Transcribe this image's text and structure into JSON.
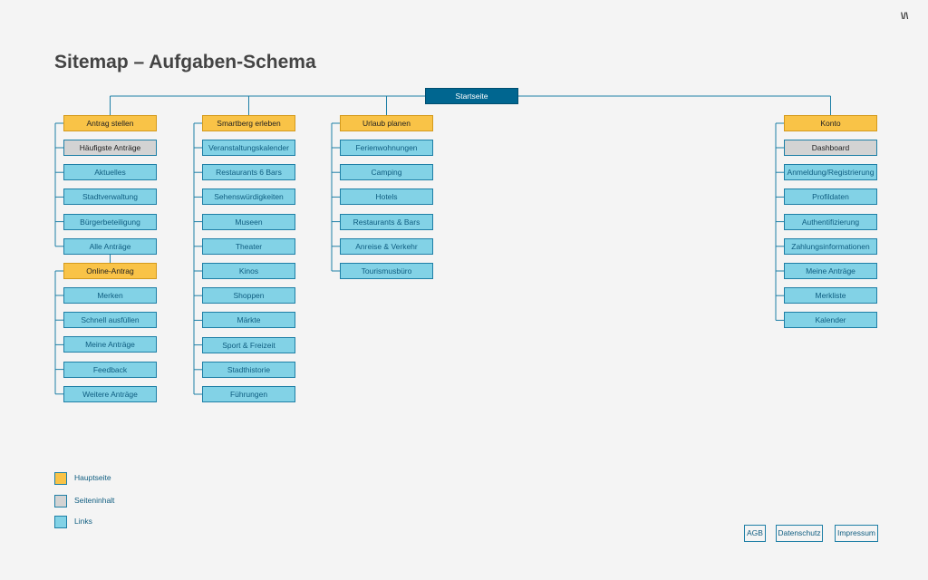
{
  "brand": {
    "logo_text": "\\/\\"
  },
  "title": "Sitemap – Aufgaben-Schema",
  "root": {
    "label": "Startseite"
  },
  "columns": [
    {
      "label": "Antrag stellen",
      "children": [
        {
          "label": "Häufigste Anträge",
          "type": "content"
        },
        {
          "label": "Aktuelles",
          "type": "link"
        },
        {
          "label": "Stadtverwaltung",
          "type": "link"
        },
        {
          "label": "Bürgerbeteiligung",
          "type": "link"
        },
        {
          "label": "Alle Anträge",
          "type": "link"
        }
      ],
      "sub": {
        "label": "Online-Antrag",
        "children": [
          {
            "label": "Merken",
            "type": "link"
          },
          {
            "label": "Schnell ausfüllen",
            "type": "link"
          },
          {
            "label": "Meine Anträge",
            "type": "link"
          },
          {
            "label": "Feedback",
            "type": "link"
          },
          {
            "label": "Weitere Anträge",
            "type": "link"
          }
        ]
      }
    },
    {
      "label": "Smartberg erleben",
      "children": [
        {
          "label": "Veranstaltungskalender",
          "type": "link"
        },
        {
          "label": "Restaurants 6 Bars",
          "type": "link"
        },
        {
          "label": "Sehenswürdigkeiten",
          "type": "link"
        },
        {
          "label": "Museen",
          "type": "link"
        },
        {
          "label": "Theater",
          "type": "link"
        },
        {
          "label": "Kinos",
          "type": "link"
        },
        {
          "label": "Shoppen",
          "type": "link"
        },
        {
          "label": "Märkte",
          "type": "link"
        },
        {
          "label": "Sport & Freizeit",
          "type": "link"
        },
        {
          "label": "Stadthistorie",
          "type": "link"
        },
        {
          "label": "Führungen",
          "type": "link"
        }
      ]
    },
    {
      "label": "Urlaub planen",
      "children": [
        {
          "label": "Ferienwohnungen",
          "type": "link"
        },
        {
          "label": "Camping",
          "type": "link"
        },
        {
          "label": "Hotels",
          "type": "link"
        },
        {
          "label": "Restaurants & Bars",
          "type": "link"
        },
        {
          "label": "Anreise & Verkehr",
          "type": "link"
        },
        {
          "label": "Tourismusbüro",
          "type": "link"
        }
      ]
    },
    {
      "label": "Konto",
      "children": [
        {
          "label": "Dashboard",
          "type": "content"
        },
        {
          "label": "Anmeldung/Registrierung",
          "type": "link"
        },
        {
          "label": "Profildaten",
          "type": "link"
        },
        {
          "label": "Authentifizierung",
          "type": "link"
        },
        {
          "label": "Zahlungsinformationen",
          "type": "link"
        },
        {
          "label": "Meine Anträge",
          "type": "link"
        },
        {
          "label": "Merkliste",
          "type": "link"
        },
        {
          "label": "Kalender",
          "type": "link"
        }
      ]
    }
  ],
  "legend": [
    {
      "label": "Hauptseite",
      "color": "#f9c347"
    },
    {
      "label": "Seiteninhalt",
      "color": "#d3d3d3"
    },
    {
      "label": "Links",
      "color": "#82d2e6"
    }
  ],
  "footer": [
    {
      "label": "AGB"
    },
    {
      "label": "Datenschutz"
    },
    {
      "label": "Impressum"
    }
  ],
  "colors": {
    "main": "#f9c347",
    "content": "#d3d3d3",
    "link": "#82d2e6",
    "root": "#006690",
    "line": "#1e7fa6"
  }
}
